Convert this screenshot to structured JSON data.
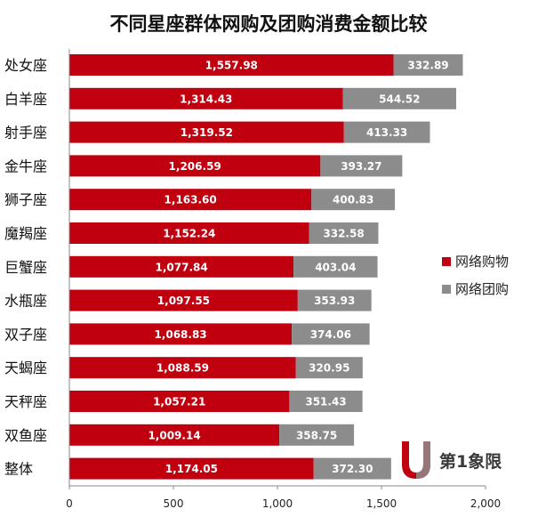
{
  "chart_data": {
    "type": "bar",
    "orientation": "horizontal",
    "stacked": true,
    "title": "不同星座群体网购及团购消费金额比较",
    "categories": [
      "处女座",
      "白羊座",
      "射手座",
      "金牛座",
      "狮子座",
      "魔羯座",
      "巨蟹座",
      "水瓶座",
      "双子座",
      "天蝎座",
      "天秤座",
      "双鱼座",
      "整体"
    ],
    "series": [
      {
        "name": "网络购物",
        "color": "#C0000F",
        "values": [
          1557.98,
          1314.43,
          1319.52,
          1206.59,
          1163.6,
          1152.24,
          1077.84,
          1097.55,
          1068.83,
          1088.59,
          1057.21,
          1009.14,
          1174.05
        ],
        "labels": [
          "1,557.98",
          "1,314.43",
          "1,319.52",
          "1,206.59",
          "1,163.60",
          "1,152.24",
          "1,077.84",
          "1,097.55",
          "1,068.83",
          "1,088.59",
          "1,057.21",
          "1,009.14",
          "1,174.05"
        ]
      },
      {
        "name": "网络团购",
        "color": "#8C8C8C",
        "values": [
          332.89,
          544.52,
          413.33,
          393.27,
          400.83,
          332.58,
          403.04,
          353.93,
          374.06,
          320.95,
          351.43,
          358.75,
          372.3
        ],
        "labels": [
          "332.89",
          "544.52",
          "413.33",
          "393.27",
          "400.83",
          "332.58",
          "403.04",
          "353.93",
          "374.06",
          "320.95",
          "351.43",
          "358.75",
          "372.30"
        ]
      }
    ],
    "xlim": [
      0,
      2000
    ],
    "xticks": [
      0,
      500,
      1000,
      1500,
      2000
    ],
    "xtick_labels": [
      "0",
      "500",
      "1,000",
      "1,500",
      "2,000"
    ],
    "xlabel": "",
    "ylabel": "",
    "grid": false,
    "legend_position": "right"
  },
  "watermark": {
    "text": "第1象限",
    "logo_colors": [
      "#C0000F",
      "#8C8C8C"
    ]
  }
}
